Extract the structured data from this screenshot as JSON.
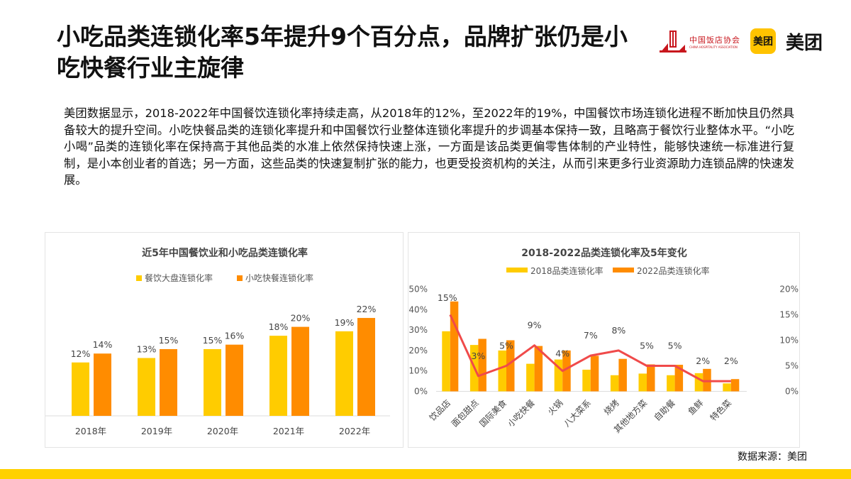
{
  "title": "小吃品类连锁化率5年提升9个百分点，品牌扩张仍是小吃快餐行业主旋律",
  "logos": {
    "hotel_cn": "中国饭店协会",
    "hotel_en": "CHINA HOSPITALITY ASSOCIATION",
    "meituan_badge": "美团",
    "meituan_word": "美团"
  },
  "paragraph": "美团数据显示，2018-2022年中国餐饮连锁化率持续走高，从2018年的12%，至2022年的19%，中国餐饮市场连锁化进程不断加快且仍然具备较大的提升空间。小吃快餐品类的连锁化率提升和中国餐饮行业整体连锁化率提升的步调基本保持一致，且略高于餐饮行业整体水平。“小吃小喝”品类的连锁化率在保持高于其他品类的水准上依然保持快速上涨，一方面是该品类更偏零售体制的产业特性，能够快速统一标准进行复制，是小本创业者的首选；另一方面，这些品类的快速复制扩张的能力，也更受投资机构的关注，从而引来更多行业资源助力连锁品牌的快速发展。",
  "source": "数据来源：美团",
  "colors": {
    "yellow": "#ffcc00",
    "orange": "#ff8c00",
    "line": "#f04a4a",
    "accent": "#ffd100"
  },
  "chart_data": [
    {
      "type": "bar",
      "title": "近5年中国餐饮业和小吃品类连锁化率",
      "categories": [
        "2018年",
        "2019年",
        "2020年",
        "2021年",
        "2022年"
      ],
      "series": [
        {
          "name": "餐饮大盘连锁化率",
          "values": [
            12,
            13,
            15,
            18,
            19
          ],
          "labels": [
            "12%",
            "13%",
            "15%",
            "18%",
            "19%"
          ]
        },
        {
          "name": "小吃快餐连锁化率",
          "values": [
            14,
            15,
            16,
            20,
            22
          ],
          "labels": [
            "14%",
            "15%",
            "16%",
            "20%",
            "22%"
          ]
        }
      ],
      "legend": "top",
      "grid": false,
      "ylim": [
        0,
        24
      ]
    },
    {
      "type": "bar+line",
      "title": "2018-2022品类连锁化率及5年变化",
      "categories": [
        "饮品店",
        "面包甜点",
        "国际美食",
        "小吃快餐",
        "火锅",
        "八大菜系",
        "烧烤",
        "其他地方菜",
        "自助餐",
        "鱼鲜",
        "特色菜"
      ],
      "series": [
        {
          "name": "2018品类连锁化率",
          "axis": "left",
          "values": [
            29.4,
            22.7,
            20,
            13.5,
            15.6,
            10.6,
            7.9,
            8.7,
            7.9,
            8.9,
            3.9
          ]
        },
        {
          "name": "2022品类连锁化率",
          "axis": "left",
          "values": [
            44,
            25.7,
            25,
            22.2,
            20,
            17.4,
            15.9,
            13.2,
            13,
            11,
            6
          ]
        },
        {
          "axis": "right",
          "type": "line",
          "values": [
            15,
            3,
            5,
            9,
            4,
            7,
            8,
            5,
            5,
            2,
            2
          ],
          "labels": [
            "15%",
            "3%",
            "5%",
            "9%",
            "4%",
            "7%",
            "8%",
            "5%",
            "5%",
            "2%",
            "2%"
          ]
        }
      ],
      "left_axis": {
        "ylim": [
          0,
          50
        ],
        "ticks": [
          "0%",
          "10%",
          "20%",
          "30%",
          "40%",
          "50%"
        ]
      },
      "right_axis": {
        "ylim": [
          0,
          20
        ],
        "ticks": [
          "0%",
          "5%",
          "10%",
          "15%",
          "20%"
        ]
      },
      "legend": "top",
      "grid": false
    }
  ]
}
